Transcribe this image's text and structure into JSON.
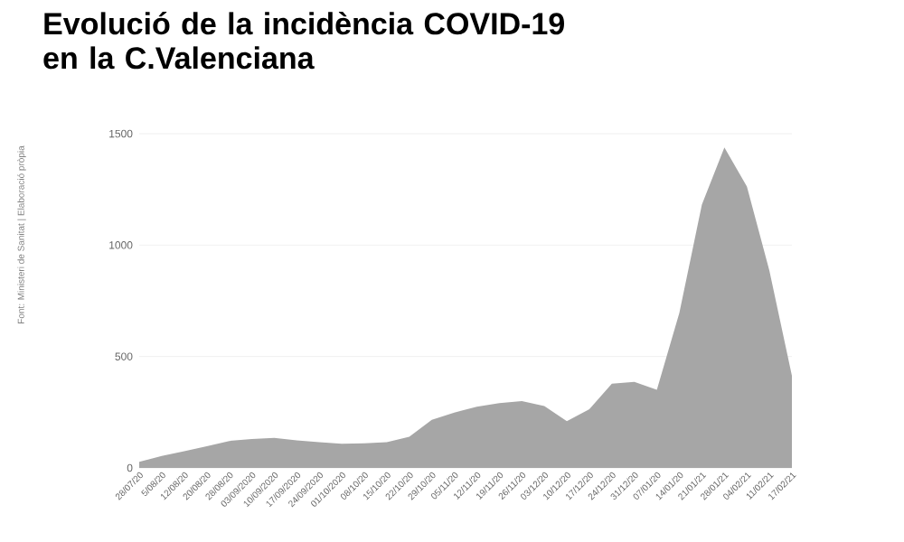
{
  "chart_data": {
    "type": "area",
    "title": "Evolució de la incidència COVID-19 en la C.Valenciana",
    "categories": [
      "28/07/20",
      "5/08/20",
      "12/08/20",
      "20/08/20",
      "28/08/20",
      "03/09/2020",
      "10/09/2020",
      "17/09/2020",
      "24/09/2020",
      "01/10/2020",
      "08/10/20",
      "15/10/20",
      "22/10/20",
      "29/10/20",
      "05/11/20",
      "12/11/20",
      "19/11/20",
      "26/11/20",
      "03/12/20",
      "10/12/20",
      "17/12/20",
      "24/12/20",
      "31/12/20",
      "07/01/20",
      "14/01/20",
      "21/01/21",
      "28/01/21",
      "04/02/21",
      "11/02/21",
      "17/02/21"
    ],
    "values": [
      27,
      54,
      75,
      97,
      121,
      130,
      135,
      124,
      116,
      108,
      110,
      116,
      140,
      216,
      248,
      275,
      291,
      300,
      278,
      210,
      264,
      378,
      386,
      351,
      696,
      1182,
      1438,
      1263,
      885,
      413
    ],
    "color": "#a6a6a6",
    "ylim": [
      0,
      1500
    ],
    "yticks": [
      0,
      500,
      1000,
      1500
    ],
    "grid": "y",
    "annotations": [
      "Font: Ministeri de Sanitat | Elaboració pròpia"
    ]
  }
}
